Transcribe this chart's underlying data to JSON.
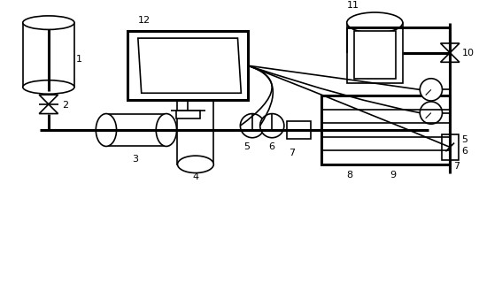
{
  "bg_color": "#ffffff",
  "line_color": "#000000",
  "lw": 1.2,
  "tlw": 2.2,
  "fig_width": 5.67,
  "fig_height": 3.37,
  "dpi": 100
}
